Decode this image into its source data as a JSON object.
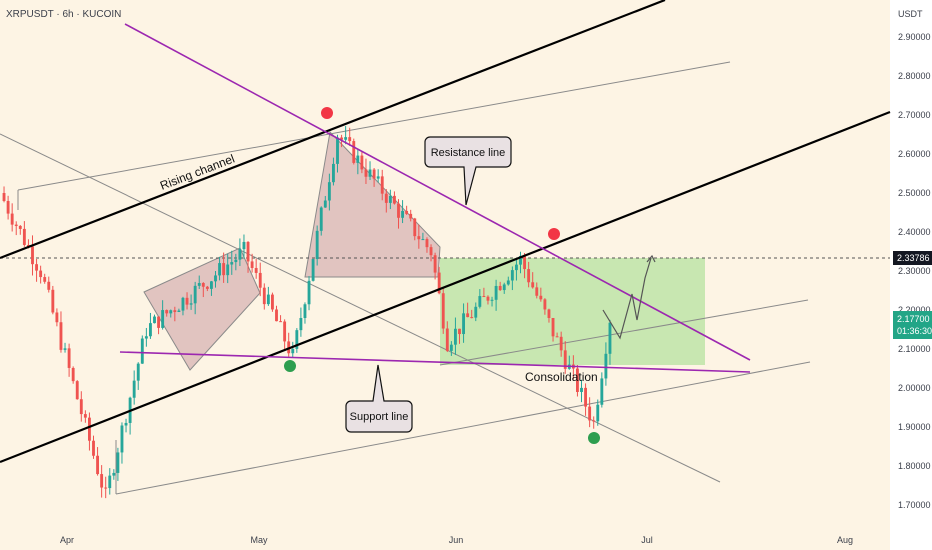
{
  "header": {
    "symbol_line": "XRPUSDT · 6h · KUCOIN"
  },
  "chart_data": {
    "type": "candlestick",
    "currency": "USDT",
    "x_ticks": [
      "Apr",
      "May",
      "Jun",
      "Jul",
      "Aug"
    ],
    "y_ticks": [
      "2.90000",
      "2.80000",
      "2.70000",
      "2.60000",
      "2.50000",
      "2.40000",
      "2.30000",
      "2.20000",
      "2.10000",
      "2.00000",
      "1.90000",
      "1.80000",
      "1.70000"
    ],
    "ylim": [
      1.66,
      2.96
    ],
    "last_price": "2.17700",
    "countdown": "01:36:30",
    "marked_level": "2.33786",
    "annotations": {
      "rising_channel": "Rising channel",
      "resistance_line": "Resistance line",
      "support_line": "Support line",
      "consolidation": "Consolidation"
    },
    "colors": {
      "up": "#26a69a",
      "down": "#ef5350",
      "channel": "#000000",
      "resistance": "#9c27b0",
      "consolidation_box": "#b6e3a0",
      "triangles": "#d8b4b4",
      "red_marker": "#f23645",
      "green_marker": "#2e9e4f"
    },
    "key_prices": [
      {
        "period": "late Mar",
        "price": 2.5
      },
      {
        "period": "early Apr",
        "price": 2.3
      },
      {
        "period": "Apr 7",
        "price": 1.72
      },
      {
        "period": "mid Apr",
        "price": 2.15
      },
      {
        "period": "late Apr",
        "price": 2.35
      },
      {
        "period": "early May",
        "price": 2.08
      },
      {
        "period": "May 12",
        "price": 2.65
      },
      {
        "period": "late May",
        "price": 2.35
      },
      {
        "period": "Jun 1",
        "price": 2.12
      },
      {
        "period": "Jun 10",
        "price": 2.33
      },
      {
        "period": "Jun 22",
        "price": 1.91
      },
      {
        "period": "Jun 26",
        "price": 2.18
      }
    ]
  }
}
